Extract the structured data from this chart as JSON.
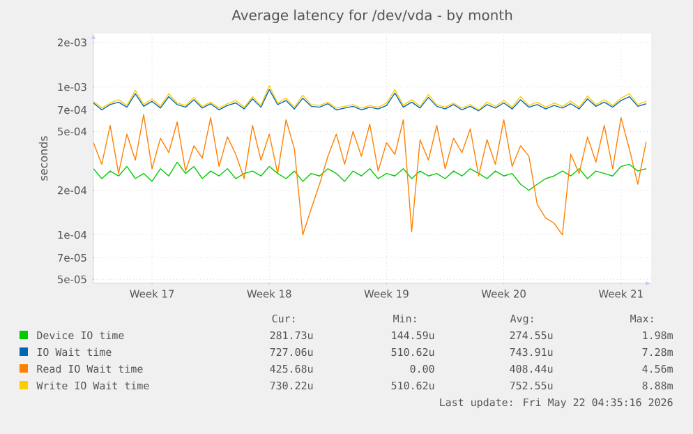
{
  "chart_data": {
    "type": "line",
    "title": "Average latency for /dev/vda - by month",
    "ylabel": "seconds",
    "log": true,
    "grid": true,
    "marker": "none",
    "line_style": "solid",
    "legend": "bottom",
    "ylim": [
      4.7e-05,
      0.0023
    ],
    "yticks": [
      {
        "value": 5e-05,
        "label": "5e-05"
      },
      {
        "value": 7e-05,
        "label": "7e-05"
      },
      {
        "value": 0.0001,
        "label": "1e-04"
      },
      {
        "value": 0.0002,
        "label": "2e-04"
      },
      {
        "value": 0.0005,
        "label": "5e-04"
      },
      {
        "value": 0.0007,
        "label": "7e-04"
      },
      {
        "value": 0.001,
        "label": "1e-03"
      },
      {
        "value": 0.002,
        "label": "2e-03"
      }
    ],
    "categories": [
      null,
      null,
      null,
      null,
      null,
      null,
      null,
      "Week 17",
      null,
      null,
      null,
      null,
      null,
      null,
      null,
      null,
      null,
      null,
      null,
      null,
      null,
      "Week 18",
      null,
      null,
      null,
      null,
      null,
      null,
      null,
      null,
      null,
      null,
      null,
      null,
      null,
      "Week 19",
      null,
      null,
      null,
      null,
      null,
      null,
      null,
      null,
      null,
      null,
      null,
      null,
      null,
      "Week 20",
      null,
      null,
      null,
      null,
      null,
      null,
      null,
      null,
      null,
      null,
      null,
      null,
      null,
      "Week 21",
      null,
      null,
      null
    ],
    "series": [
      {
        "name": "Device IO time",
        "color": "#00cc00",
        "values": [
          0.00028,
          0.00024,
          0.00027,
          0.00025,
          0.00029,
          0.00024,
          0.00026,
          0.00023,
          0.00028,
          0.00025,
          0.00031,
          0.00026,
          0.00029,
          0.00024,
          0.00027,
          0.00025,
          0.00028,
          0.00024,
          0.00026,
          0.00027,
          0.00025,
          0.00029,
          0.00026,
          0.00024,
          0.00027,
          0.00023,
          0.00026,
          0.00025,
          0.00028,
          0.00026,
          0.00023,
          0.00027,
          0.00025,
          0.00028,
          0.00024,
          0.00026,
          0.00025,
          0.00028,
          0.00024,
          0.00027,
          0.00025,
          0.00026,
          0.00024,
          0.00027,
          0.00025,
          0.00028,
          0.00026,
          0.00024,
          0.00027,
          0.00025,
          0.00026,
          0.00022,
          0.0002,
          0.00022,
          0.00024,
          0.00025,
          0.00027,
          0.00025,
          0.00028,
          0.00024,
          0.00027,
          0.00026,
          0.00025,
          0.00029,
          0.0003,
          0.00027,
          0.00028
        ]
      },
      {
        "name": "IO Wait time",
        "color": "#0066b3",
        "values": [
          0.00078,
          0.0007,
          0.00076,
          0.00079,
          0.00073,
          0.0009,
          0.00074,
          0.0008,
          0.00072,
          0.00086,
          0.00076,
          0.00073,
          0.00082,
          0.00072,
          0.00077,
          0.0007,
          0.00075,
          0.00078,
          0.00071,
          0.00083,
          0.00073,
          0.00096,
          0.00076,
          0.00081,
          0.00071,
          0.00084,
          0.00074,
          0.00073,
          0.00077,
          0.0007,
          0.00072,
          0.00074,
          0.0007,
          0.00073,
          0.00071,
          0.00075,
          0.00091,
          0.00073,
          0.00079,
          0.00072,
          0.00085,
          0.00074,
          0.00071,
          0.00076,
          0.0007,
          0.00074,
          0.00069,
          0.00076,
          0.00072,
          0.00078,
          0.00071,
          0.00082,
          0.00073,
          0.00076,
          0.00071,
          0.00075,
          0.00072,
          0.00077,
          0.00071,
          0.00083,
          0.00074,
          0.00079,
          0.00073,
          0.00081,
          0.00086,
          0.00074,
          0.00077
        ]
      },
      {
        "name": "Read IO Wait time",
        "color": "#ff8000",
        "values": [
          0.00042,
          0.0003,
          0.00055,
          0.00026,
          0.00048,
          0.00032,
          0.00065,
          0.00028,
          0.00045,
          0.00036,
          0.00058,
          0.00027,
          0.0004,
          0.00033,
          0.00062,
          0.00029,
          0.00046,
          0.00035,
          0.00024,
          0.00055,
          0.00032,
          0.00048,
          0.00026,
          0.0006,
          0.00038,
          0.0001,
          0.00015,
          0.00022,
          0.00034,
          0.00048,
          0.0003,
          0.0005,
          0.00034,
          0.00056,
          0.00027,
          0.00042,
          0.00035,
          0.0006,
          0.000105,
          0.00044,
          0.00032,
          0.00055,
          0.00028,
          0.00045,
          0.00036,
          0.00052,
          0.00025,
          0.00044,
          0.0003,
          0.0006,
          0.00029,
          0.0004,
          0.00034,
          0.00016,
          0.00013,
          0.00012,
          0.0001,
          0.00035,
          0.00026,
          0.00046,
          0.00031,
          0.00055,
          0.00028,
          0.00062,
          0.00038,
          0.00022,
          0.000426
        ]
      },
      {
        "name": "Write IO Wait time",
        "color": "#ffcc00",
        "values": [
          0.0008,
          0.00072,
          0.00078,
          0.00082,
          0.00075,
          0.00095,
          0.00076,
          0.00083,
          0.00074,
          0.0009,
          0.00078,
          0.00075,
          0.00085,
          0.00074,
          0.00079,
          0.00072,
          0.00077,
          0.00081,
          0.00073,
          0.00086,
          0.00075,
          0.00102,
          0.00078,
          0.00084,
          0.00073,
          0.00088,
          0.00076,
          0.00075,
          0.00079,
          0.00072,
          0.00074,
          0.00076,
          0.00072,
          0.00075,
          0.00073,
          0.00078,
          0.00096,
          0.00075,
          0.00082,
          0.00074,
          0.00089,
          0.00076,
          0.00073,
          0.00078,
          0.00072,
          0.00076,
          0.0007,
          0.00079,
          0.00074,
          0.00081,
          0.00073,
          0.00086,
          0.00075,
          0.00079,
          0.00073,
          0.00078,
          0.00074,
          0.0008,
          0.00073,
          0.00087,
          0.00076,
          0.00082,
          0.00075,
          0.00084,
          0.0009,
          0.00076,
          0.0008
        ]
      }
    ],
    "annotations": [
      "Cur:",
      "Min:",
      "Avg:",
      "Max:",
      "281.73u",
      "144.59u",
      "274.55u",
      "1.98m",
      "727.06u",
      "510.62u",
      "743.91u",
      "7.28m",
      "425.68u",
      "0.00",
      "408.44u",
      "4.56m",
      "730.22u",
      "510.62u",
      "752.55u",
      "8.88m",
      "Last update: Fri May 22 04:35:16 2026"
    ]
  }
}
